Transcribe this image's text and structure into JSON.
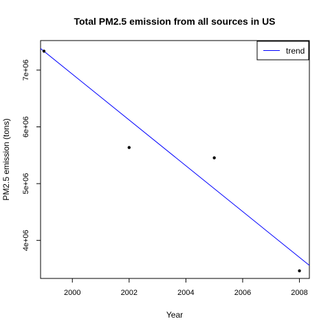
{
  "chart_data": {
    "type": "scatter",
    "title": "Total PM2.5 emission from all sources in US",
    "xlabel": "Year",
    "ylabel": "PM2.5 emission (tons)",
    "xlim": [
      1998.88,
      2008.35
    ],
    "ylim": [
      3330000,
      7520000
    ],
    "x_ticks": [
      2000,
      2002,
      2004,
      2006,
      2008
    ],
    "x_tick_labels": [
      "2000",
      "2002",
      "2004",
      "2006",
      "2008"
    ],
    "y_ticks": [
      4000000,
      5000000,
      6000000,
      7000000
    ],
    "y_tick_labels": [
      "4e+06",
      "5e+06",
      "6e+06",
      "7e+06"
    ],
    "points": [
      {
        "x": 1999,
        "y": 7332967
      },
      {
        "x": 2002,
        "y": 5635780
      },
      {
        "x": 2005,
        "y": 5454703
      },
      {
        "x": 2008,
        "y": 3464206
      }
    ],
    "trend": {
      "name": "trend",
      "color": "#0000ff",
      "x": [
        1998.88,
        2008.35
      ],
      "y": [
        7380000,
        3560000
      ]
    },
    "legend": {
      "position": "top-right",
      "entries": [
        "trend"
      ]
    },
    "grid": false,
    "colors": {
      "points": "#000000",
      "trend": "#0000ff"
    }
  }
}
